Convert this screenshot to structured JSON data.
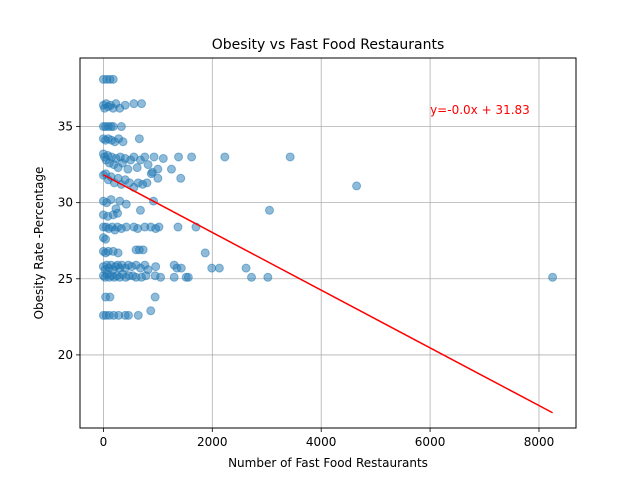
{
  "chart_data": {
    "type": "scatter",
    "title": "Obesity vs Fast Food Restaurants",
    "xlabel": "Number of Fast Food Restaurants",
    "ylabel": "Obesity Rate -Percentage",
    "xlim": [
      -430,
      8680
    ],
    "ylim": [
      15.2,
      39.5
    ],
    "xticks": [
      0,
      2000,
      4000,
      6000,
      8000
    ],
    "xtick_labels": [
      "0",
      "2000",
      "4000",
      "6000",
      "8000"
    ],
    "yticks": [
      20,
      25,
      30,
      35
    ],
    "ytick_labels": [
      "20",
      "25",
      "30",
      "35"
    ],
    "grid": true,
    "colors": {
      "points": "#1f77b4",
      "line": "#ff0000",
      "annotation": "#ff0000"
    },
    "regression": {
      "equation": "y=-0.0x + 31.83",
      "x": [
        0,
        8250
      ],
      "y": [
        31.83,
        16.2
      ],
      "label_at": [
        6000,
        36.1
      ]
    },
    "points": [
      {
        "x": 0,
        "y": 38.1
      },
      {
        "x": 60,
        "y": 38.1
      },
      {
        "x": 120,
        "y": 38.1
      },
      {
        "x": 180,
        "y": 38.1
      },
      {
        "x": 0,
        "y": 36.4
      },
      {
        "x": 20,
        "y": 36.2
      },
      {
        "x": 50,
        "y": 36.5
      },
      {
        "x": 90,
        "y": 36.3
      },
      {
        "x": 130,
        "y": 36.4
      },
      {
        "x": 180,
        "y": 36.2
      },
      {
        "x": 230,
        "y": 36.5
      },
      {
        "x": 300,
        "y": 36.2
      },
      {
        "x": 400,
        "y": 36.4
      },
      {
        "x": 560,
        "y": 36.5
      },
      {
        "x": 700,
        "y": 36.5
      },
      {
        "x": 0,
        "y": 35.0
      },
      {
        "x": 40,
        "y": 35.0
      },
      {
        "x": 90,
        "y": 35.0
      },
      {
        "x": 140,
        "y": 35.0
      },
      {
        "x": 180,
        "y": 35.0
      },
      {
        "x": 330,
        "y": 35.0
      },
      {
        "x": 0,
        "y": 34.2
      },
      {
        "x": 40,
        "y": 34.1
      },
      {
        "x": 90,
        "y": 34.2
      },
      {
        "x": 150,
        "y": 34.1
      },
      {
        "x": 210,
        "y": 34.0
      },
      {
        "x": 280,
        "y": 34.2
      },
      {
        "x": 360,
        "y": 34.0
      },
      {
        "x": 660,
        "y": 34.2
      },
      {
        "x": 0,
        "y": 33.2
      },
      {
        "x": 20,
        "y": 33.0
      },
      {
        "x": 50,
        "y": 32.8
      },
      {
        "x": 80,
        "y": 33.1
      },
      {
        "x": 110,
        "y": 32.6
      },
      {
        "x": 150,
        "y": 33.0
      },
      {
        "x": 190,
        "y": 32.5
      },
      {
        "x": 230,
        "y": 32.9
      },
      {
        "x": 270,
        "y": 32.3
      },
      {
        "x": 310,
        "y": 33.0
      },
      {
        "x": 350,
        "y": 32.6
      },
      {
        "x": 400,
        "y": 32.9
      },
      {
        "x": 450,
        "y": 32.2
      },
      {
        "x": 500,
        "y": 32.8
      },
      {
        "x": 560,
        "y": 33.0
      },
      {
        "x": 620,
        "y": 32.3
      },
      {
        "x": 680,
        "y": 32.8
      },
      {
        "x": 760,
        "y": 33.0
      },
      {
        "x": 820,
        "y": 32.5
      },
      {
        "x": 900,
        "y": 32.0
      },
      {
        "x": 930,
        "y": 33.0
      },
      {
        "x": 1000,
        "y": 32.2
      },
      {
        "x": 1100,
        "y": 32.9
      },
      {
        "x": 1250,
        "y": 32.2
      },
      {
        "x": 1380,
        "y": 33.0
      },
      {
        "x": 1420,
        "y": 31.6
      },
      {
        "x": 1620,
        "y": 33.0
      },
      {
        "x": 2230,
        "y": 33.0
      },
      {
        "x": 3430,
        "y": 33.0
      },
      {
        "x": 0,
        "y": 31.8
      },
      {
        "x": 40,
        "y": 31.9
      },
      {
        "x": 90,
        "y": 31.5
      },
      {
        "x": 140,
        "y": 31.7
      },
      {
        "x": 200,
        "y": 31.3
      },
      {
        "x": 270,
        "y": 31.6
      },
      {
        "x": 330,
        "y": 31.2
      },
      {
        "x": 400,
        "y": 31.5
      },
      {
        "x": 480,
        "y": 31.3
      },
      {
        "x": 560,
        "y": 31.0
      },
      {
        "x": 640,
        "y": 31.3
      },
      {
        "x": 720,
        "y": 31.2
      },
      {
        "x": 800,
        "y": 31.3
      },
      {
        "x": 880,
        "y": 31.9
      },
      {
        "x": 1000,
        "y": 31.6
      },
      {
        "x": 4650,
        "y": 31.1
      },
      {
        "x": 0,
        "y": 30.1
      },
      {
        "x": 60,
        "y": 30.0
      },
      {
        "x": 140,
        "y": 30.2
      },
      {
        "x": 230,
        "y": 29.6
      },
      {
        "x": 300,
        "y": 30.1
      },
      {
        "x": 420,
        "y": 29.9
      },
      {
        "x": 680,
        "y": 29.5
      },
      {
        "x": 920,
        "y": 30.1
      },
      {
        "x": 3050,
        "y": 29.5
      },
      {
        "x": 0,
        "y": 29.2
      },
      {
        "x": 80,
        "y": 29.1
      },
      {
        "x": 180,
        "y": 29.2
      },
      {
        "x": 260,
        "y": 29.3
      },
      {
        "x": 0,
        "y": 28.4
      },
      {
        "x": 50,
        "y": 28.4
      },
      {
        "x": 100,
        "y": 28.3
      },
      {
        "x": 160,
        "y": 28.4
      },
      {
        "x": 210,
        "y": 28.2
      },
      {
        "x": 260,
        "y": 28.4
      },
      {
        "x": 330,
        "y": 28.3
      },
      {
        "x": 420,
        "y": 28.4
      },
      {
        "x": 560,
        "y": 28.4
      },
      {
        "x": 630,
        "y": 28.3
      },
      {
        "x": 760,
        "y": 28.4
      },
      {
        "x": 870,
        "y": 28.4
      },
      {
        "x": 960,
        "y": 28.3
      },
      {
        "x": 1020,
        "y": 28.4
      },
      {
        "x": 1370,
        "y": 28.4
      },
      {
        "x": 1700,
        "y": 28.4
      },
      {
        "x": 0,
        "y": 27.7
      },
      {
        "x": 40,
        "y": 27.6
      },
      {
        "x": 0,
        "y": 26.8
      },
      {
        "x": 40,
        "y": 26.7
      },
      {
        "x": 90,
        "y": 26.8
      },
      {
        "x": 180,
        "y": 26.8
      },
      {
        "x": 270,
        "y": 26.7
      },
      {
        "x": 600,
        "y": 26.9
      },
      {
        "x": 660,
        "y": 26.9
      },
      {
        "x": 730,
        "y": 26.9
      },
      {
        "x": 1870,
        "y": 26.7
      },
      {
        "x": 0,
        "y": 25.8
      },
      {
        "x": 30,
        "y": 25.6
      },
      {
        "x": 60,
        "y": 25.9
      },
      {
        "x": 100,
        "y": 25.7
      },
      {
        "x": 140,
        "y": 25.9
      },
      {
        "x": 180,
        "y": 25.6
      },
      {
        "x": 220,
        "y": 25.8
      },
      {
        "x": 260,
        "y": 25.9
      },
      {
        "x": 300,
        "y": 25.7
      },
      {
        "x": 340,
        "y": 25.9
      },
      {
        "x": 400,
        "y": 25.7
      },
      {
        "x": 460,
        "y": 25.9
      },
      {
        "x": 520,
        "y": 25.8
      },
      {
        "x": 600,
        "y": 25.9
      },
      {
        "x": 680,
        "y": 25.7
      },
      {
        "x": 760,
        "y": 25.9
      },
      {
        "x": 820,
        "y": 25.6
      },
      {
        "x": 960,
        "y": 25.8
      },
      {
        "x": 1300,
        "y": 25.9
      },
      {
        "x": 1350,
        "y": 25.7
      },
      {
        "x": 1430,
        "y": 25.7
      },
      {
        "x": 1990,
        "y": 25.7
      },
      {
        "x": 2130,
        "y": 25.7
      },
      {
        "x": 2620,
        "y": 25.7
      },
      {
        "x": 0,
        "y": 25.2
      },
      {
        "x": 30,
        "y": 25.1
      },
      {
        "x": 70,
        "y": 25.3
      },
      {
        "x": 110,
        "y": 25.1
      },
      {
        "x": 150,
        "y": 25.2
      },
      {
        "x": 200,
        "y": 25.1
      },
      {
        "x": 250,
        "y": 25.2
      },
      {
        "x": 300,
        "y": 25.1
      },
      {
        "x": 350,
        "y": 25.3
      },
      {
        "x": 410,
        "y": 25.1
      },
      {
        "x": 470,
        "y": 25.2
      },
      {
        "x": 540,
        "y": 25.2
      },
      {
        "x": 600,
        "y": 25.1
      },
      {
        "x": 700,
        "y": 25.1
      },
      {
        "x": 780,
        "y": 25.2
      },
      {
        "x": 950,
        "y": 25.2
      },
      {
        "x": 1050,
        "y": 25.1
      },
      {
        "x": 1300,
        "y": 25.1
      },
      {
        "x": 1520,
        "y": 25.1
      },
      {
        "x": 1560,
        "y": 25.1
      },
      {
        "x": 2720,
        "y": 25.1
      },
      {
        "x": 3020,
        "y": 25.1
      },
      {
        "x": 8250,
        "y": 25.1
      },
      {
        "x": 40,
        "y": 23.8
      },
      {
        "x": 120,
        "y": 23.8
      },
      {
        "x": 950,
        "y": 23.8
      },
      {
        "x": 0,
        "y": 22.6
      },
      {
        "x": 50,
        "y": 22.6
      },
      {
        "x": 110,
        "y": 22.6
      },
      {
        "x": 190,
        "y": 22.6
      },
      {
        "x": 280,
        "y": 22.6
      },
      {
        "x": 400,
        "y": 22.6
      },
      {
        "x": 460,
        "y": 22.6
      },
      {
        "x": 640,
        "y": 22.6
      },
      {
        "x": 870,
        "y": 22.9
      }
    ]
  }
}
